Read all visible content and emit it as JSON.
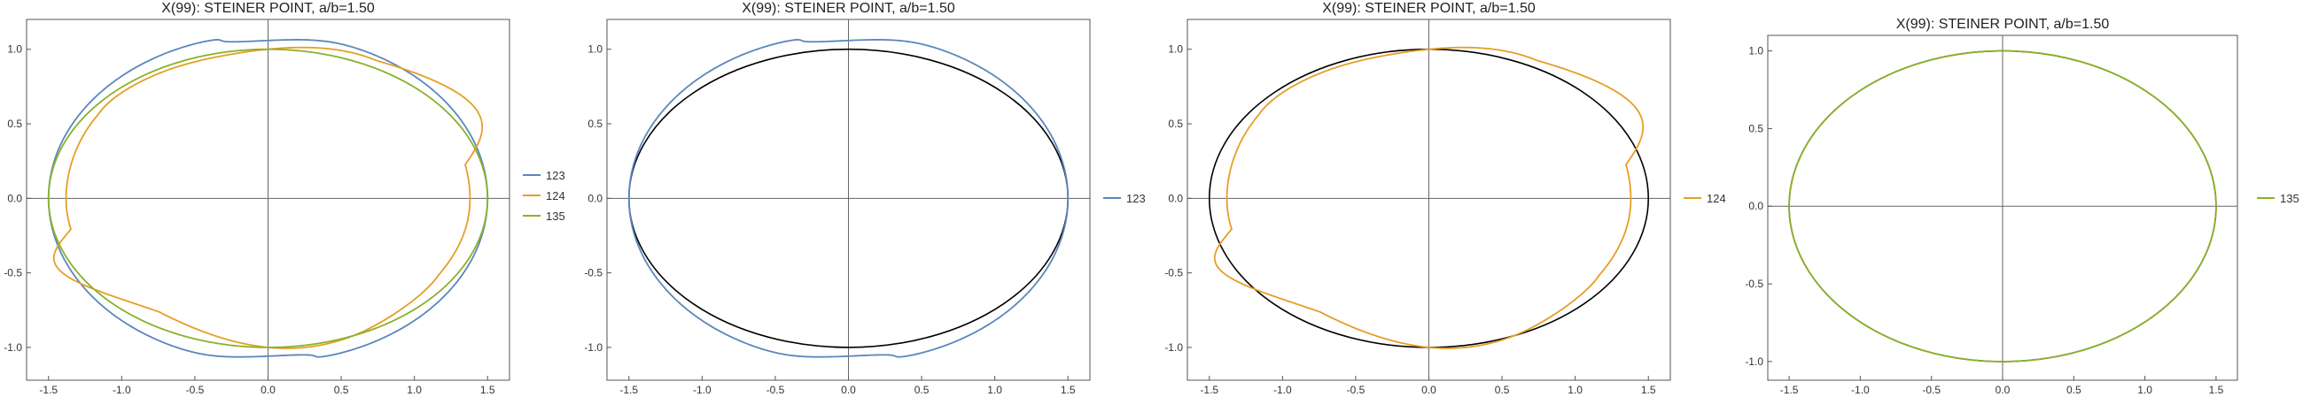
{
  "colors": {
    "s123": "#5b86bd",
    "s124": "#e69e25",
    "s135": "#8ab12a",
    "unit": "#000000"
  },
  "chart_data": [
    {
      "type": "line",
      "title": "X(99): STEINER POINT, a/b=1.50",
      "xlim": [
        -1.65,
        1.65
      ],
      "ylim": [
        -1.22,
        1.2
      ],
      "xticks": [
        -1.5,
        -1.0,
        -0.5,
        0.0,
        0.5,
        1.0,
        1.5
      ],
      "xtick_labels": [
        "-1.5",
        "-1.0",
        "-0.5",
        "0.0",
        "0.5",
        "1.0",
        "1.5"
      ],
      "yticks": [
        -1.0,
        -0.5,
        0.0,
        0.5,
        1.0
      ],
      "ytick_labels": [
        "-1.0",
        "-0.5",
        "0.0",
        "0.5",
        "1.0"
      ],
      "grid": false,
      "legend": "right",
      "series": [
        {
          "name": "123",
          "color_key": "s123",
          "shape": "ellipse_cusps",
          "rx": 1.5,
          "ry": 1.1,
          "loop_x": 0.3,
          "loop_h": 0.1
        },
        {
          "name": "124",
          "color_key": "s124",
          "shape": "lobed",
          "rx": 1.38,
          "ry": 1.0,
          "lobe_amp": 0.38,
          "lobe_dir_deg": 35
        },
        {
          "name": "135",
          "color_key": "s135",
          "shape": "ellipse",
          "rx": 1.5,
          "ry": 1.0
        }
      ],
      "reference_curve": false
    },
    {
      "type": "line",
      "title": "X(99): STEINER POINT, a/b=1.50",
      "xlim": [
        -1.65,
        1.65
      ],
      "ylim": [
        -1.22,
        1.2
      ],
      "xticks": [
        -1.5,
        -1.0,
        -0.5,
        0.0,
        0.5,
        1.0,
        1.5
      ],
      "xtick_labels": [
        "-1.5",
        "-1.0",
        "-0.5",
        "0.0",
        "0.5",
        "1.0",
        "1.5"
      ],
      "yticks": [
        -1.0,
        -0.5,
        0.0,
        0.5,
        1.0
      ],
      "ytick_labels": [
        "-1.0",
        "-0.5",
        "0.0",
        "0.5",
        "1.0"
      ],
      "grid": false,
      "legend": "right",
      "series": [
        {
          "name": "123",
          "color_key": "s123",
          "shape": "ellipse_cusps",
          "rx": 1.5,
          "ry": 1.1,
          "loop_x": 0.3,
          "loop_h": 0.1
        }
      ],
      "reference_curve": true
    },
    {
      "type": "line",
      "title": "X(99): STEINER POINT, a/b=1.50",
      "xlim": [
        -1.65,
        1.65
      ],
      "ylim": [
        -1.22,
        1.2
      ],
      "xticks": [
        -1.5,
        -1.0,
        -0.5,
        0.0,
        0.5,
        1.0,
        1.5
      ],
      "xtick_labels": [
        "-1.5",
        "-1.0",
        "-0.5",
        "0.0",
        "0.5",
        "1.0",
        "1.5"
      ],
      "yticks": [
        -1.0,
        -0.5,
        0.0,
        0.5,
        1.0
      ],
      "ytick_labels": [
        "-1.0",
        "-0.5",
        "0.0",
        "0.5",
        "1.0"
      ],
      "grid": false,
      "legend": "right",
      "series": [
        {
          "name": "124",
          "color_key": "s124",
          "shape": "lobed",
          "rx": 1.38,
          "ry": 1.0,
          "lobe_amp": 0.38,
          "lobe_dir_deg": 35
        }
      ],
      "reference_curve": true
    },
    {
      "type": "line",
      "title": "X(99): STEINER POINT, a/b=1.50",
      "xlim": [
        -1.65,
        1.65
      ],
      "ylim": [
        -1.12,
        1.1
      ],
      "xticks": [
        -1.5,
        -1.0,
        -0.5,
        0.0,
        0.5,
        1.0,
        1.5
      ],
      "xtick_labels": [
        "-1.5",
        "-1.0",
        "-0.5",
        "0.0",
        "0.5",
        "1.0",
        "1.5"
      ],
      "yticks": [
        -1.0,
        -0.5,
        0.0,
        0.5,
        1.0
      ],
      "ytick_labels": [
        "-1.0",
        "-0.5",
        "0.0",
        "0.5",
        "1.0"
      ],
      "grid": false,
      "legend": "right",
      "series": [
        {
          "name": "135",
          "color_key": "s135",
          "shape": "ellipse",
          "rx": 1.5,
          "ry": 1.0
        }
      ],
      "reference_curve": true
    }
  ]
}
